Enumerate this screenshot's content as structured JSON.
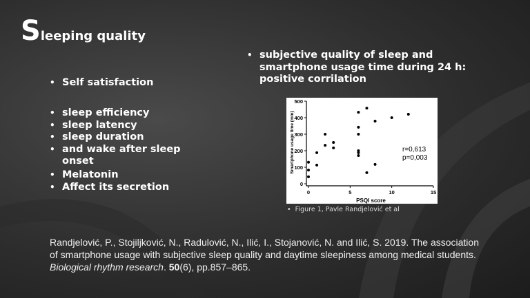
{
  "title": "Sleeping quality",
  "left_bullets": [
    [
      "Self satisfaction"
    ],
    [
      "sleep efficiency",
      "sleep latency",
      "sleep duration",
      "and wake after sleep onset"
    ],
    [
      "Melatonin",
      "Affect its secretion"
    ]
  ],
  "right_bullet": "subjective quality of sleep and smartphone usage time during 24 h: positive corrilation",
  "caption": "Figure 1, Pavle Randjelović et al",
  "citation": [
    "Randjelović, P., Stojiljković, N., Radulović, N., Ilić, I., Stojanović, N. and Ilić, S. 2019. The association of smartphone usage with subjective sleep quality and daytime sleepiness among medical students. ",
    "Biological rhythm research",
    ". ",
    "50",
    "(6), pp.857–865."
  ],
  "chart_data": {
    "type": "scatter",
    "color": "#000000",
    "x": [
      0,
      0,
      0,
      1,
      1,
      2,
      2,
      3,
      3,
      6,
      6,
      6,
      6,
      6,
      6,
      7,
      7,
      8,
      8,
      10,
      12
    ],
    "y": [
      130,
      83,
      42,
      188,
      113,
      300,
      233,
      250,
      217,
      433,
      342,
      300,
      200,
      188,
      171,
      458,
      67,
      379,
      117,
      400,
      421
    ],
    "xlim": [
      0,
      15
    ],
    "ylim": [
      0,
      500
    ],
    "xticks": [
      0,
      5,
      10,
      15
    ],
    "yticks": [
      0,
      100,
      200,
      300,
      400,
      500
    ],
    "xlabel": "PSQI score",
    "ylabel": "Smartphone usage time (min)",
    "annotations": [
      "r=0,613",
      "p=0,003"
    ]
  }
}
